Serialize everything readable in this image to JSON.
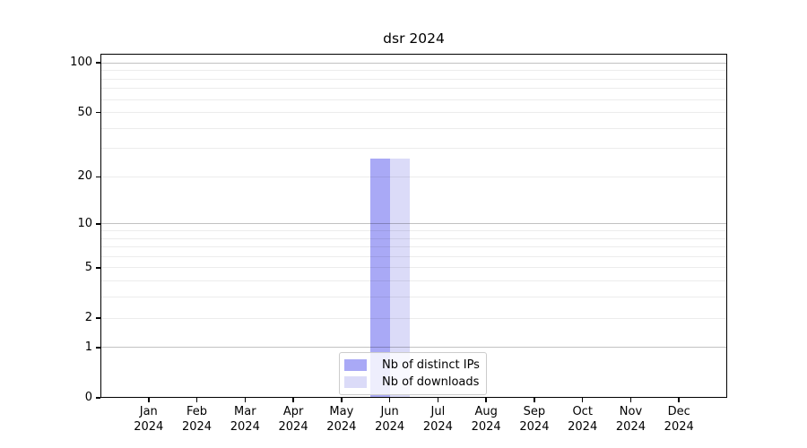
{
  "chart_data": {
    "type": "bar",
    "title": "dsr 2024",
    "categories": [
      "Jan",
      "Feb",
      "Mar",
      "Apr",
      "May",
      "Jun",
      "Jul",
      "Aug",
      "Sep",
      "Oct",
      "Nov",
      "Dec"
    ],
    "category_year": "2024",
    "series": [
      {
        "name": "Nb of distinct IPs",
        "color": "#a9a9f6",
        "values": [
          0,
          0,
          0,
          0,
          0,
          26,
          0,
          0,
          0,
          0,
          0,
          0
        ]
      },
      {
        "name": "Nb of downloads",
        "color": "#dbdbf8",
        "values": [
          0,
          0,
          0,
          0,
          0,
          26,
          0,
          0,
          0,
          0,
          0,
          0
        ]
      }
    ],
    "y_axis": {
      "scale": "log1p",
      "ticks": [
        0,
        1,
        2,
        5,
        10,
        20,
        50,
        100
      ],
      "major_gridlines": [
        1,
        10,
        100
      ],
      "minor_gridlines": [
        2,
        3,
        4,
        5,
        6,
        7,
        8,
        9,
        20,
        30,
        40,
        50,
        60,
        70,
        80,
        90
      ],
      "ylim": [
        0,
        113.5
      ]
    },
    "xlabel": "",
    "ylabel": "",
    "grid": "horizontal",
    "legend_position": "bottom-center",
    "colors": {
      "major_grid": "rgba(0,0,0,0.24)",
      "minor_grid": "rgba(0,0,0,0.075)",
      "spine": "#000000",
      "text": "#000000",
      "background": "#ffffff"
    }
  }
}
